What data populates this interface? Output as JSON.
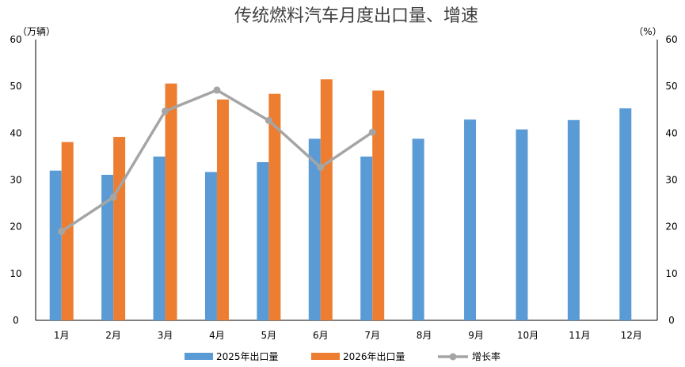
{
  "chart_data": {
    "type": "bar",
    "title": "传统燃料汽车月度出口量、增速",
    "y_left_unit": "（万辆）",
    "y_right_unit": "（%）",
    "categories": [
      "1月",
      "2月",
      "3月",
      "4月",
      "5月",
      "6月",
      "7月",
      "8月",
      "9月",
      "10月",
      "11月",
      "12月"
    ],
    "ylim_left": [
      0,
      60
    ],
    "ylim_right": [
      0,
      60
    ],
    "left_ticks": [
      "0",
      "10",
      "20",
      "30",
      "40",
      "50",
      "60"
    ],
    "right_ticks": [
      "0",
      "10",
      "20",
      "30",
      "40",
      "50",
      "60"
    ],
    "grid": false,
    "legend_position": "bottom",
    "series": [
      {
        "name": "2025年出口量",
        "type": "bar",
        "axis": "left",
        "color": "#5B9BD5",
        "values": [
          32.0,
          31.1,
          35.0,
          31.7,
          33.8,
          38.8,
          35.0,
          38.8,
          42.9,
          40.8,
          42.8,
          45.3
        ]
      },
      {
        "name": "2026年出口量",
        "type": "bar",
        "axis": "left",
        "color": "#ED7D31",
        "values": [
          38.1,
          39.2,
          50.6,
          47.2,
          48.4,
          51.5,
          49.1,
          null,
          null,
          null,
          null,
          null
        ]
      },
      {
        "name": "增长率",
        "type": "line",
        "axis": "right",
        "color": "#A5A5A5",
        "values": [
          19.0,
          26.3,
          44.7,
          49.2,
          42.7,
          32.7,
          40.2,
          null,
          null,
          null,
          null,
          null
        ]
      }
    ]
  }
}
